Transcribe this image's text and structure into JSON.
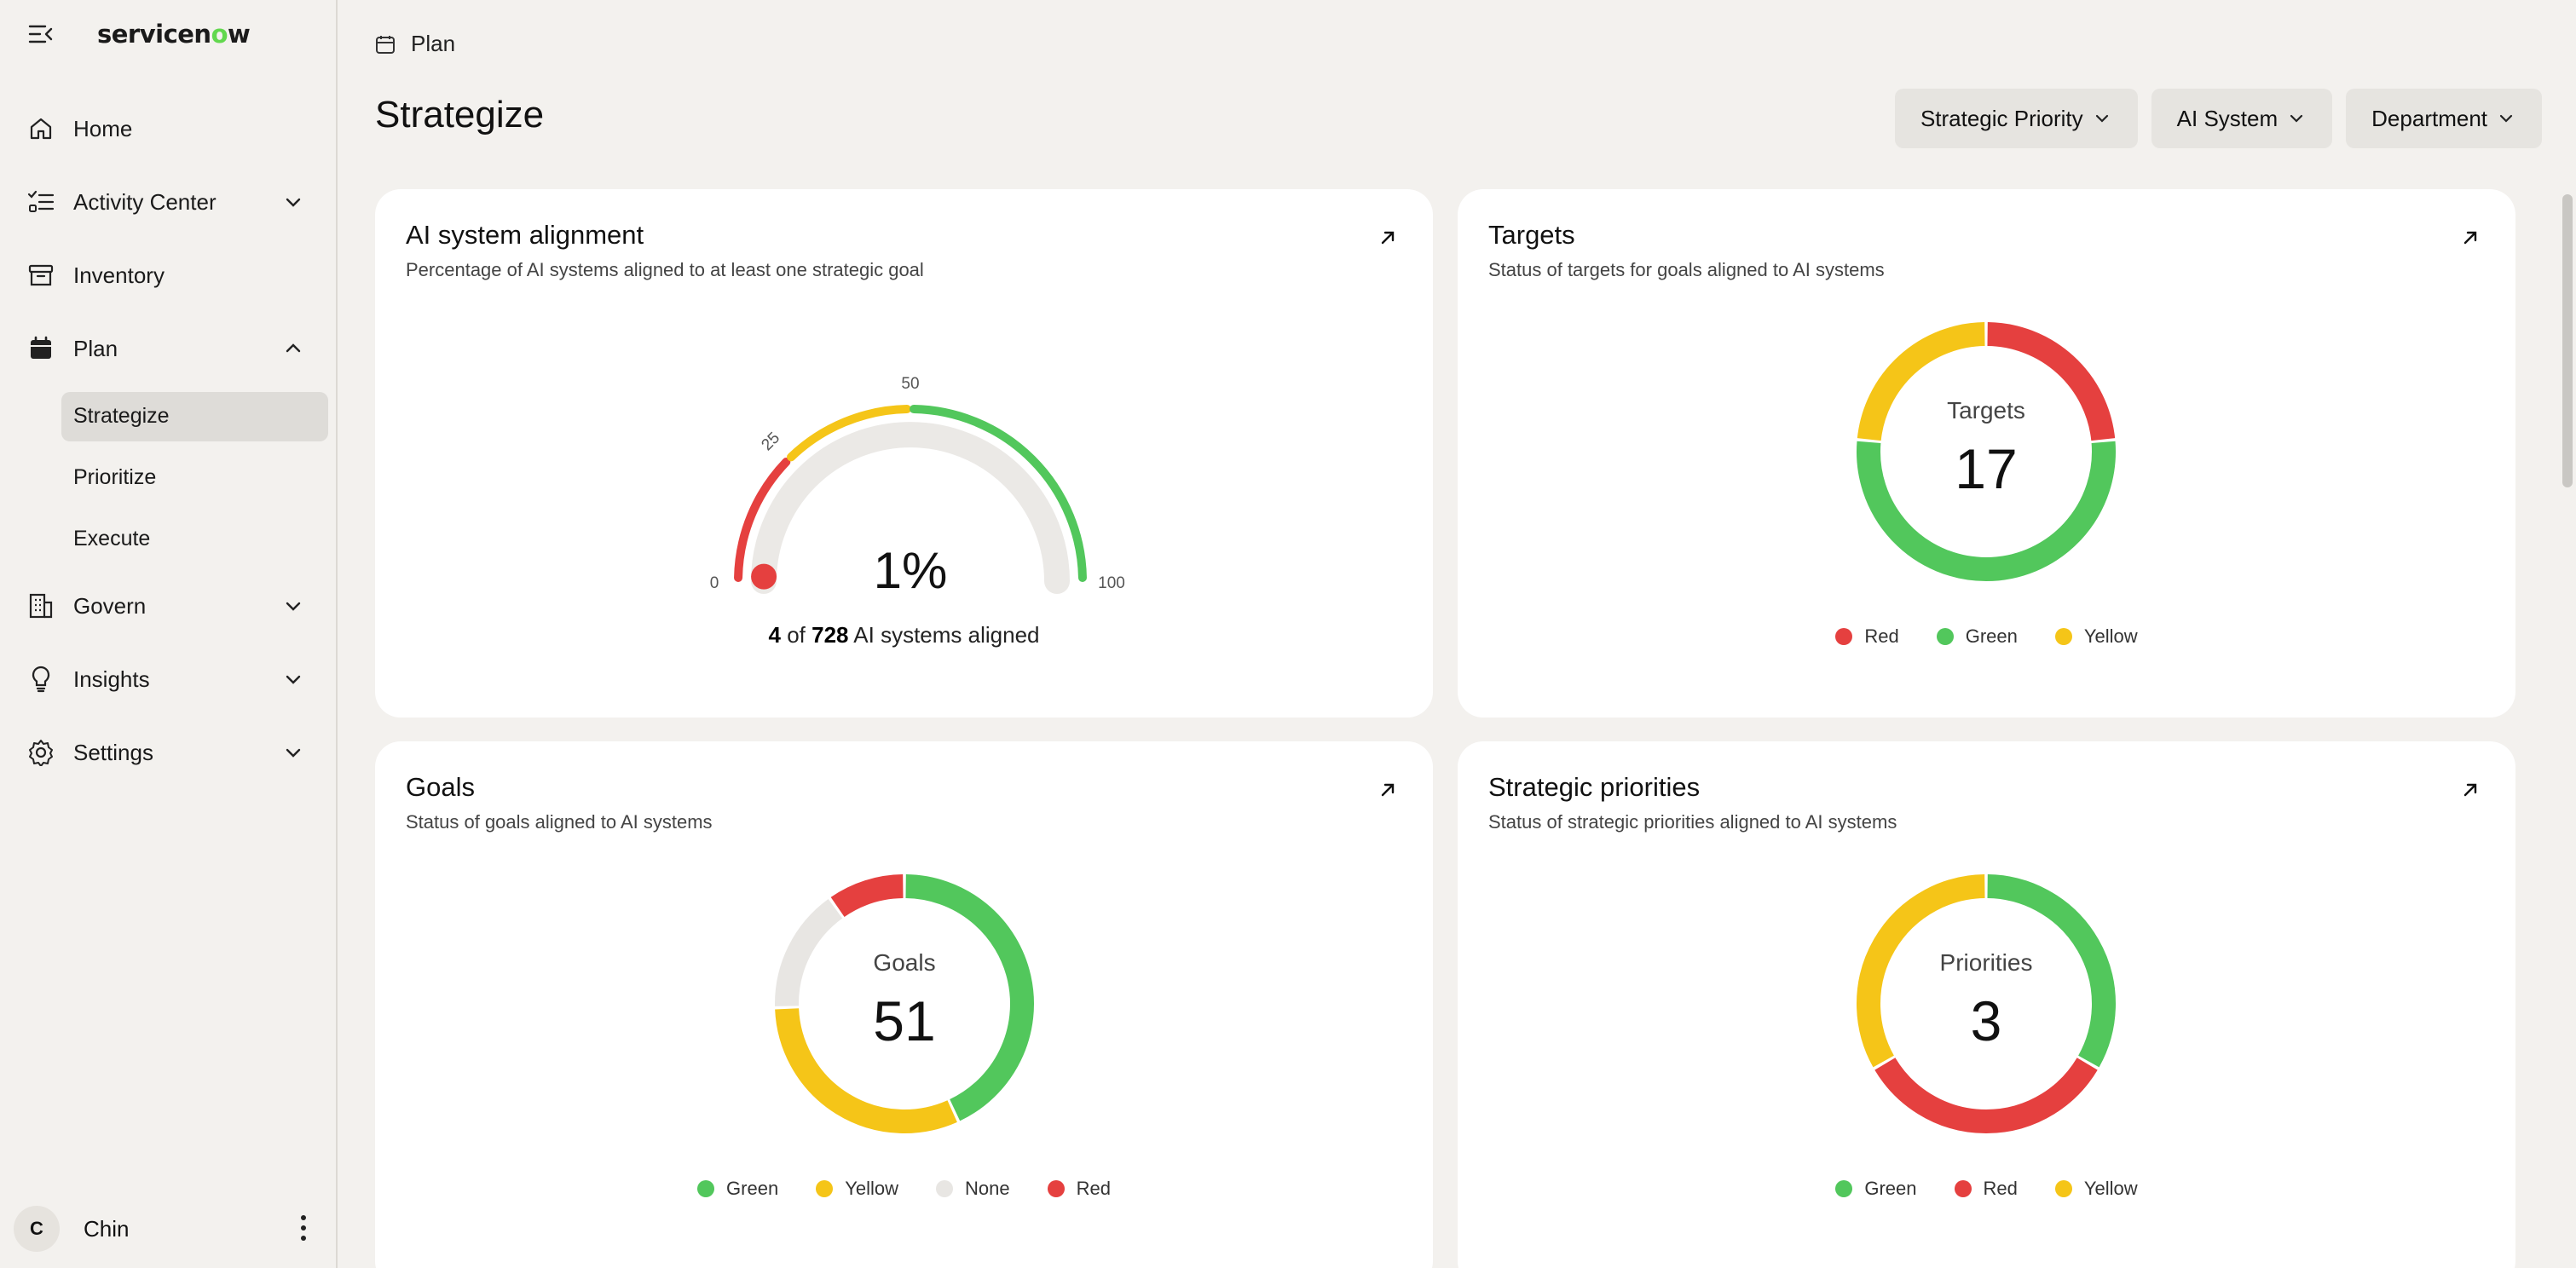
{
  "sidebar": {
    "logo": "servicenow",
    "items": [
      {
        "label": "Home"
      },
      {
        "label": "Activity Center"
      },
      {
        "label": "Inventory"
      },
      {
        "label": "Plan"
      },
      {
        "label": "Govern"
      },
      {
        "label": "Insights"
      },
      {
        "label": "Settings"
      }
    ],
    "plan_sub": [
      {
        "label": "Strategize"
      },
      {
        "label": "Prioritize"
      },
      {
        "label": "Execute"
      }
    ],
    "user": {
      "initial": "C",
      "name": "Chin"
    }
  },
  "breadcrumb": "Plan",
  "page_title": "Strategize",
  "filters": [
    "Strategic Priority",
    "AI System",
    "Department"
  ],
  "colors": {
    "red": "#e5403f",
    "green": "#52c75c",
    "yellow": "#f5c518",
    "none": "#e8e6e3"
  },
  "cards": {
    "alignment": {
      "title": "AI system alignment",
      "subtitle": "Percentage of AI systems aligned to at least one strategic goal",
      "value_text": "1%",
      "aligned": "4",
      "of": "of",
      "total": "728",
      "caption": "AI systems aligned",
      "ticks": [
        "0",
        "25",
        "50",
        "100"
      ]
    },
    "targets": {
      "title": "Targets",
      "subtitle": "Status of targets for goals aligned to AI systems",
      "center_label": "Targets",
      "center_value": "17",
      "legend": [
        "Red",
        "Green",
        "Yellow"
      ]
    },
    "goals": {
      "title": "Goals",
      "subtitle": "Status of goals aligned to AI systems",
      "center_label": "Goals",
      "center_value": "51",
      "legend": [
        "Green",
        "Yellow",
        "None",
        "Red"
      ]
    },
    "priorities": {
      "title": "Strategic priorities",
      "subtitle": "Status of strategic priorities aligned to AI systems",
      "center_label": "Priorities",
      "center_value": "3",
      "legend": [
        "Green",
        "Red",
        "Yellow"
      ]
    }
  },
  "chart_data": [
    {
      "type": "gauge",
      "title": "AI system alignment",
      "value": 1,
      "range": [
        0,
        100
      ],
      "bands": [
        {
          "from": 0,
          "to": 25,
          "color": "red"
        },
        {
          "from": 25,
          "to": 50,
          "color": "yellow"
        },
        {
          "from": 50,
          "to": 100,
          "color": "green"
        }
      ]
    },
    {
      "type": "pie",
      "title": "Targets",
      "categories": [
        "Red",
        "Green",
        "Yellow"
      ],
      "values": [
        4,
        9,
        4
      ]
    },
    {
      "type": "pie",
      "title": "Goals",
      "categories": [
        "Green",
        "Yellow",
        "None",
        "Red"
      ],
      "values": [
        22,
        16,
        8,
        5
      ]
    },
    {
      "type": "pie",
      "title": "Strategic priorities",
      "categories": [
        "Green",
        "Red",
        "Yellow"
      ],
      "values": [
        1,
        1,
        1
      ]
    }
  ]
}
